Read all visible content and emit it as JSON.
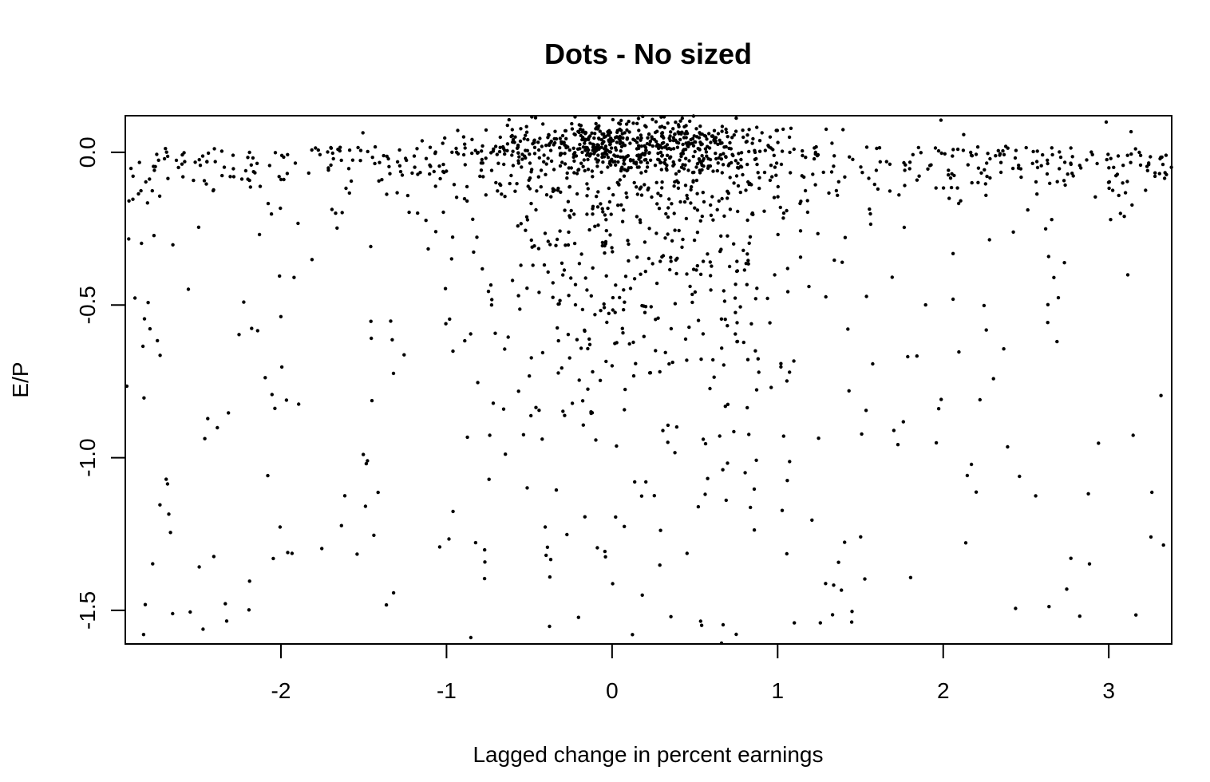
{
  "chart_data": {
    "type": "scatter",
    "title": "Dots - No sized",
    "xlabel": "Lagged change in percent earnings",
    "ylabel": "E/P",
    "xlim": [
      -2.94,
      3.38
    ],
    "ylim": [
      -1.61,
      0.12
    ],
    "xticks": [
      -2,
      -1,
      0,
      1,
      2,
      3
    ],
    "xtick_labels": [
      "-2",
      "-1",
      "0",
      "1",
      "2",
      "3"
    ],
    "yticks": [
      0.0,
      -0.5,
      -1.0,
      -1.5
    ],
    "ytick_labels": [
      "0.0",
      "-0.5",
      "-1.0",
      "-1.5"
    ],
    "grid": false,
    "legend": "none",
    "marker_color": "#000000",
    "point_count": 1700,
    "point_distribution": "points dense near x≈0.1, y≈0.03 and along y≈0 (−2.9 to 3.4); spread thins toward y=−1.6 and |x|>1"
  }
}
